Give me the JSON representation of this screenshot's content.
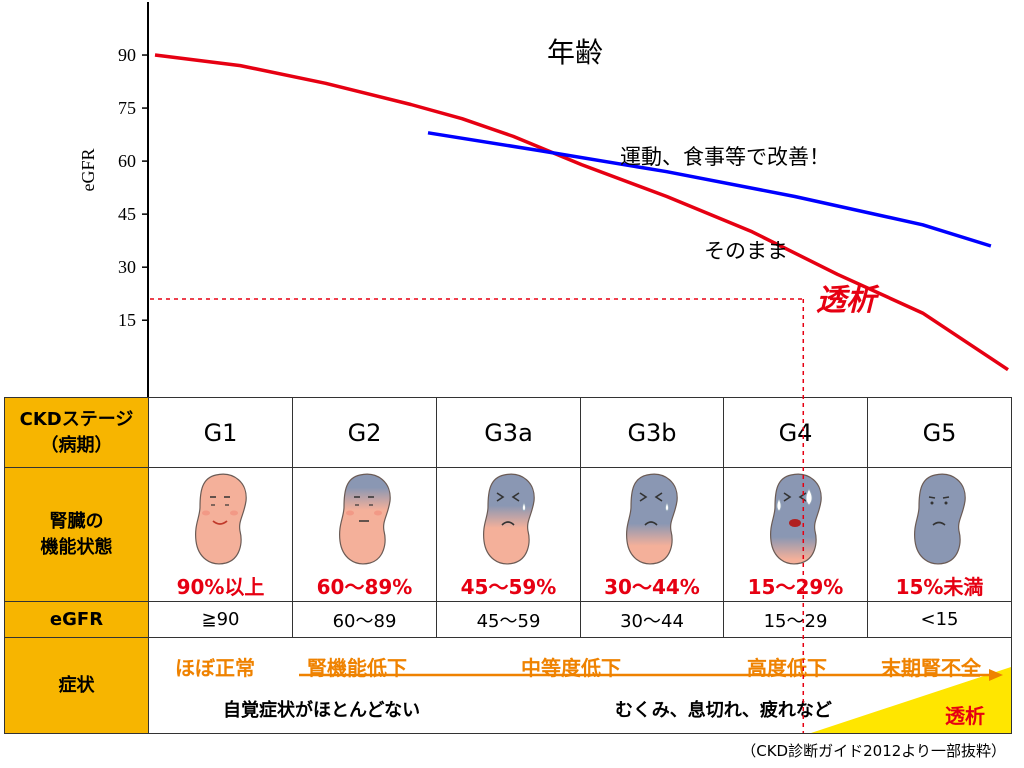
{
  "chart_data": {
    "type": "line",
    "title": "年齢",
    "xlabel": "",
    "ylabel": "eGFR",
    "y_ticks": [
      90,
      75,
      60,
      45,
      30,
      15
    ],
    "ylim": [
      -7,
      105
    ],
    "x_range": [
      0,
      100
    ],
    "series": [
      {
        "name": "そのまま",
        "color": "#e60012",
        "points": [
          [
            0,
            90
          ],
          [
            10,
            87
          ],
          [
            20,
            82
          ],
          [
            30,
            76
          ],
          [
            36,
            72
          ],
          [
            42,
            67
          ],
          [
            50,
            59
          ],
          [
            60,
            50
          ],
          [
            70,
            40
          ],
          [
            80,
            28
          ],
          [
            90,
            17
          ],
          [
            100,
            1
          ]
        ]
      },
      {
        "name": "運動、食事等で改善！",
        "color": "#0000ff",
        "points": [
          [
            32,
            68
          ],
          [
            45,
            63
          ],
          [
            60,
            57
          ],
          [
            75,
            50
          ],
          [
            90,
            42
          ],
          [
            98,
            36
          ]
        ]
      }
    ],
    "dialysis_marker": {
      "label": "透析",
      "x": 76,
      "y": 21
    }
  },
  "table": {
    "header_label_line1": "CKDステージ",
    "header_label_line2": "（病期）",
    "kidney_label_line1": "腎臓の",
    "kidney_label_line2": "機能状態",
    "egfr_label": "eGFR",
    "symptom_label": "症状",
    "stages": [
      {
        "stage": "G1",
        "function": "90%以上",
        "egfr": "≧90",
        "face": "happy",
        "blue_level": 0.0
      },
      {
        "stage": "G2",
        "function": "60～89%",
        "egfr": "60～89",
        "face": "neutral",
        "blue_level": 0.3
      },
      {
        "stage": "G3a",
        "function": "45～59%",
        "egfr": "45～59",
        "face": "sad",
        "blue_level": 0.5
      },
      {
        "stage": "G3b",
        "function": "30～44%",
        "egfr": "30～44",
        "face": "sad",
        "blue_level": 0.7
      },
      {
        "stage": "G4",
        "function": "15～29%",
        "egfr": "15～29",
        "face": "crying",
        "blue_level": 0.85
      },
      {
        "stage": "G5",
        "function": "15%未満",
        "egfr": "<15",
        "face": "gloomy",
        "blue_level": 1.0
      }
    ],
    "symptoms": {
      "g1": "ほぼ正常",
      "mild": "腎機能低下",
      "moderate": "中等度低下",
      "severe": "高度低下",
      "end": "末期腎不全",
      "no_symptom": "自覚症状がほとんどない",
      "signs": "むくみ、息切れ、疲れなど",
      "dialysis": "透析"
    }
  },
  "source": "（CKD診断ガイド2012より一部抜粋）",
  "colors": {
    "header": "#f7b500",
    "red": "#e60012",
    "blue": "#0000ff",
    "orange": "#ef8200",
    "yellow": "#ffe600",
    "kidney_pink": "#f4b09a",
    "kidney_blue": "#8a97b3"
  }
}
